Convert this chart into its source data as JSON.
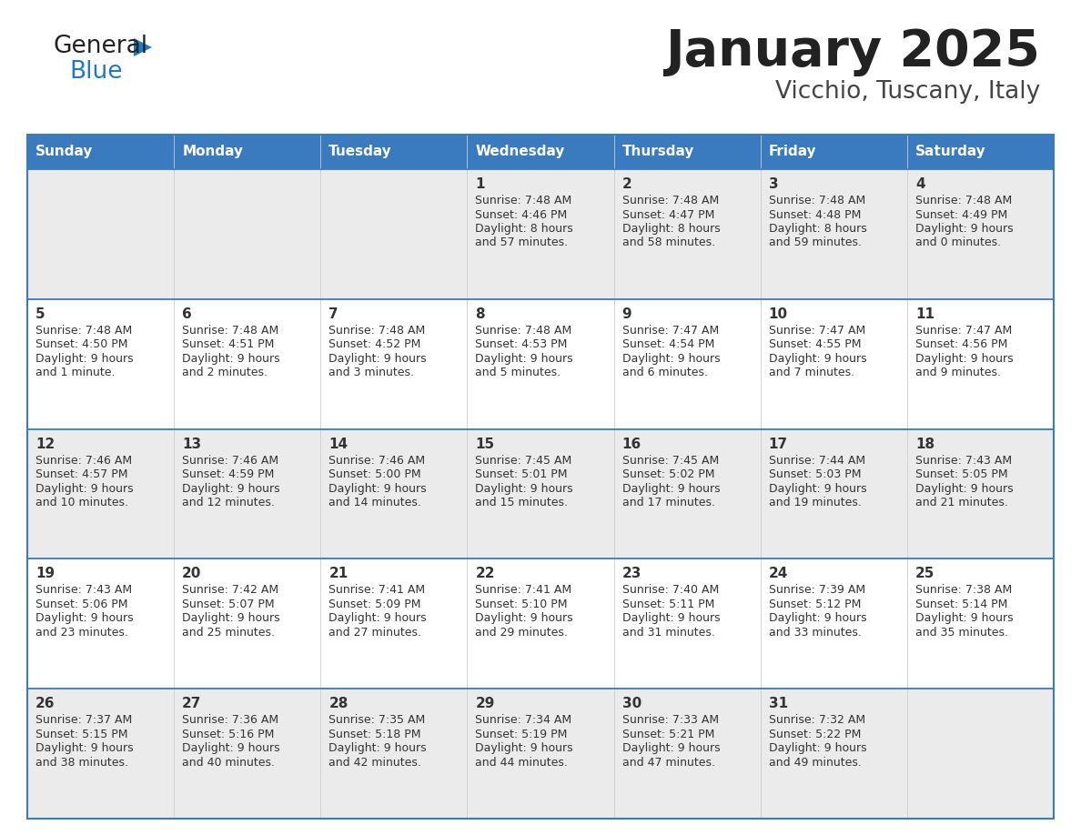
{
  "title": "January 2025",
  "subtitle": "Vicchio, Tuscany, Italy",
  "header_bg": "#3a7abf",
  "header_text": "#ffffff",
  "border_color": "#3a7abf",
  "text_color": "#333333",
  "days_of_week": [
    "Sunday",
    "Monday",
    "Tuesday",
    "Wednesday",
    "Thursday",
    "Friday",
    "Saturday"
  ],
  "row_colors": [
    "#ebebeb",
    "#ffffff",
    "#ebebeb",
    "#ffffff",
    "#ebebeb"
  ],
  "calendar": [
    [
      {
        "day": "",
        "sunrise": "",
        "sunset": "",
        "daylight": ""
      },
      {
        "day": "",
        "sunrise": "",
        "sunset": "",
        "daylight": ""
      },
      {
        "day": "",
        "sunrise": "",
        "sunset": "",
        "daylight": ""
      },
      {
        "day": "1",
        "sunrise": "7:48 AM",
        "sunset": "4:46 PM",
        "daylight_l1": "Daylight: 8 hours",
        "daylight_l2": "and 57 minutes."
      },
      {
        "day": "2",
        "sunrise": "7:48 AM",
        "sunset": "4:47 PM",
        "daylight_l1": "Daylight: 8 hours",
        "daylight_l2": "and 58 minutes."
      },
      {
        "day": "3",
        "sunrise": "7:48 AM",
        "sunset": "4:48 PM",
        "daylight_l1": "Daylight: 8 hours",
        "daylight_l2": "and 59 minutes."
      },
      {
        "day": "4",
        "sunrise": "7:48 AM",
        "sunset": "4:49 PM",
        "daylight_l1": "Daylight: 9 hours",
        "daylight_l2": "and 0 minutes."
      }
    ],
    [
      {
        "day": "5",
        "sunrise": "7:48 AM",
        "sunset": "4:50 PM",
        "daylight_l1": "Daylight: 9 hours",
        "daylight_l2": "and 1 minute."
      },
      {
        "day": "6",
        "sunrise": "7:48 AM",
        "sunset": "4:51 PM",
        "daylight_l1": "Daylight: 9 hours",
        "daylight_l2": "and 2 minutes."
      },
      {
        "day": "7",
        "sunrise": "7:48 AM",
        "sunset": "4:52 PM",
        "daylight_l1": "Daylight: 9 hours",
        "daylight_l2": "and 3 minutes."
      },
      {
        "day": "8",
        "sunrise": "7:48 AM",
        "sunset": "4:53 PM",
        "daylight_l1": "Daylight: 9 hours",
        "daylight_l2": "and 5 minutes."
      },
      {
        "day": "9",
        "sunrise": "7:47 AM",
        "sunset": "4:54 PM",
        "daylight_l1": "Daylight: 9 hours",
        "daylight_l2": "and 6 minutes."
      },
      {
        "day": "10",
        "sunrise": "7:47 AM",
        "sunset": "4:55 PM",
        "daylight_l1": "Daylight: 9 hours",
        "daylight_l2": "and 7 minutes."
      },
      {
        "day": "11",
        "sunrise": "7:47 AM",
        "sunset": "4:56 PM",
        "daylight_l1": "Daylight: 9 hours",
        "daylight_l2": "and 9 minutes."
      }
    ],
    [
      {
        "day": "12",
        "sunrise": "7:46 AM",
        "sunset": "4:57 PM",
        "daylight_l1": "Daylight: 9 hours",
        "daylight_l2": "and 10 minutes."
      },
      {
        "day": "13",
        "sunrise": "7:46 AM",
        "sunset": "4:59 PM",
        "daylight_l1": "Daylight: 9 hours",
        "daylight_l2": "and 12 minutes."
      },
      {
        "day": "14",
        "sunrise": "7:46 AM",
        "sunset": "5:00 PM",
        "daylight_l1": "Daylight: 9 hours",
        "daylight_l2": "and 14 minutes."
      },
      {
        "day": "15",
        "sunrise": "7:45 AM",
        "sunset": "5:01 PM",
        "daylight_l1": "Daylight: 9 hours",
        "daylight_l2": "and 15 minutes."
      },
      {
        "day": "16",
        "sunrise": "7:45 AM",
        "sunset": "5:02 PM",
        "daylight_l1": "Daylight: 9 hours",
        "daylight_l2": "and 17 minutes."
      },
      {
        "day": "17",
        "sunrise": "7:44 AM",
        "sunset": "5:03 PM",
        "daylight_l1": "Daylight: 9 hours",
        "daylight_l2": "and 19 minutes."
      },
      {
        "day": "18",
        "sunrise": "7:43 AM",
        "sunset": "5:05 PM",
        "daylight_l1": "Daylight: 9 hours",
        "daylight_l2": "and 21 minutes."
      }
    ],
    [
      {
        "day": "19",
        "sunrise": "7:43 AM",
        "sunset": "5:06 PM",
        "daylight_l1": "Daylight: 9 hours",
        "daylight_l2": "and 23 minutes."
      },
      {
        "day": "20",
        "sunrise": "7:42 AM",
        "sunset": "5:07 PM",
        "daylight_l1": "Daylight: 9 hours",
        "daylight_l2": "and 25 minutes."
      },
      {
        "day": "21",
        "sunrise": "7:41 AM",
        "sunset": "5:09 PM",
        "daylight_l1": "Daylight: 9 hours",
        "daylight_l2": "and 27 minutes."
      },
      {
        "day": "22",
        "sunrise": "7:41 AM",
        "sunset": "5:10 PM",
        "daylight_l1": "Daylight: 9 hours",
        "daylight_l2": "and 29 minutes."
      },
      {
        "day": "23",
        "sunrise": "7:40 AM",
        "sunset": "5:11 PM",
        "daylight_l1": "Daylight: 9 hours",
        "daylight_l2": "and 31 minutes."
      },
      {
        "day": "24",
        "sunrise": "7:39 AM",
        "sunset": "5:12 PM",
        "daylight_l1": "Daylight: 9 hours",
        "daylight_l2": "and 33 minutes."
      },
      {
        "day": "25",
        "sunrise": "7:38 AM",
        "sunset": "5:14 PM",
        "daylight_l1": "Daylight: 9 hours",
        "daylight_l2": "and 35 minutes."
      }
    ],
    [
      {
        "day": "26",
        "sunrise": "7:37 AM",
        "sunset": "5:15 PM",
        "daylight_l1": "Daylight: 9 hours",
        "daylight_l2": "and 38 minutes."
      },
      {
        "day": "27",
        "sunrise": "7:36 AM",
        "sunset": "5:16 PM",
        "daylight_l1": "Daylight: 9 hours",
        "daylight_l2": "and 40 minutes."
      },
      {
        "day": "28",
        "sunrise": "7:35 AM",
        "sunset": "5:18 PM",
        "daylight_l1": "Daylight: 9 hours",
        "daylight_l2": "and 42 minutes."
      },
      {
        "day": "29",
        "sunrise": "7:34 AM",
        "sunset": "5:19 PM",
        "daylight_l1": "Daylight: 9 hours",
        "daylight_l2": "and 44 minutes."
      },
      {
        "day": "30",
        "sunrise": "7:33 AM",
        "sunset": "5:21 PM",
        "daylight_l1": "Daylight: 9 hours",
        "daylight_l2": "and 47 minutes."
      },
      {
        "day": "31",
        "sunrise": "7:32 AM",
        "sunset": "5:22 PM",
        "daylight_l1": "Daylight: 9 hours",
        "daylight_l2": "and 49 minutes."
      },
      {
        "day": "",
        "sunrise": "",
        "sunset": "",
        "daylight_l1": "",
        "daylight_l2": ""
      }
    ]
  ],
  "logo_color_general": "#222222",
  "logo_color_blue": "#2178c4"
}
